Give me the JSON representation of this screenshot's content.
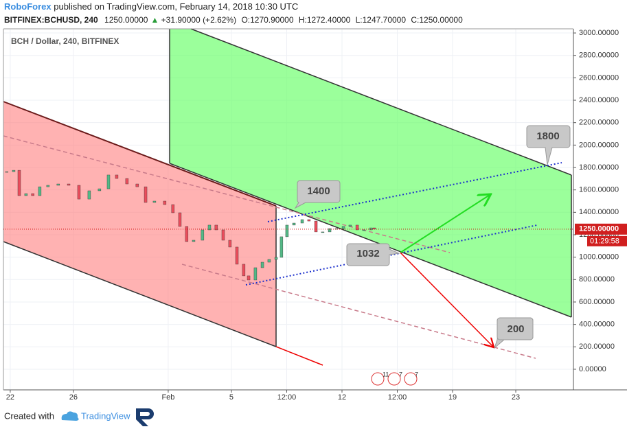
{
  "header": {
    "publisher": "RoboForex",
    "published": "published on TradingView.com, February 14, 2018 10:30 UTC",
    "symbol": "BITFINEX:BCHUSD, 240",
    "last": "1250.00000",
    "change": "+31.90000 (+2.62%)",
    "open": "O:1270.90000",
    "high": "H:1272.40000",
    "low": "L:1247.70000",
    "close": "C:1250.00000"
  },
  "chart_data": {
    "type": "candlestick",
    "legend": "BCH / Dollar, 240, BITFINEX",
    "x": [
      -0.22,
      0.22,
      0.57,
      1,
      1.43,
      1.87,
      2.39,
      3.04,
      3.7,
      4.35,
      5,
      5.65,
      6.22,
      6.74,
      7.39,
      8.04,
      8.57,
      9.13,
      9.78,
      10.3,
      10.74,
      11.17,
      11.61,
      12.17,
      12.61,
      13.04,
      13.48,
      13.91,
      14.35,
      14.78,
      15.09,
      15.52,
      15.96,
      16.39,
      16.83,
      17.17,
      17.52,
      17.96,
      18.48,
      18.91,
      19.35,
      19.78,
      20.22,
      20.65,
      21.09,
      21.52,
      21.96,
      22.39,
      22.83,
      23.04
    ],
    "values": [
      1763,
      1775,
      1549,
      1567,
      1549,
      1628,
      1641,
      1653,
      1641,
      1518,
      1592,
      1610,
      1733,
      1702,
      1653,
      1628,
      1488,
      1500,
      1469,
      1396,
      1274,
      1139,
      1151,
      1243,
      1286,
      1243,
      1151,
      1090,
      937,
      833,
      796,
      906,
      955,
      980,
      998,
      1182,
      1286,
      1304,
      1335,
      1322,
      1225,
      1225,
      1255,
      1255,
      1274,
      1286,
      1243,
      1243,
      1261,
      1250
    ],
    "up_color": "#53b987",
    "down_color": "#eb4d5c",
    "xlim": [
      -0.43,
      35.65
    ],
    "xticks": [
      {
        "value": 0,
        "label": "22"
      },
      {
        "value": 4,
        "label": "26"
      },
      {
        "value": 10,
        "label": "Feb"
      },
      {
        "value": 14,
        "label": "5"
      },
      {
        "value": 17.5,
        "label": "12:00"
      },
      {
        "value": 21,
        "label": "12"
      },
      {
        "value": 24.5,
        "label": "12:00"
      },
      {
        "value": 28,
        "label": "19"
      },
      {
        "value": 32,
        "label": "23"
      }
    ],
    "ylim": [
      -184,
      3037
    ],
    "yticks": [
      {
        "value": 0,
        "label": "0.00000"
      },
      {
        "value": 200,
        "label": "200.00000"
      },
      {
        "value": 400,
        "label": "400.00000"
      },
      {
        "value": 600,
        "label": "600.00000"
      },
      {
        "value": 800,
        "label": "800.00000"
      },
      {
        "value": 1000,
        "label": "1000.00000"
      },
      {
        "value": 1200,
        "label": "1200.00000"
      },
      {
        "value": 1400,
        "label": "1400.00000"
      },
      {
        "value": 1600,
        "label": "1600.00000"
      },
      {
        "value": 1800,
        "label": "1800.00000"
      },
      {
        "value": 2000,
        "label": "2000.00000"
      },
      {
        "value": 2200,
        "label": "2200.00000"
      },
      {
        "value": 2400,
        "label": "2400.00000"
      },
      {
        "value": 2600,
        "label": "2600.00000"
      },
      {
        "value": 2800,
        "label": "2800.00000"
      },
      {
        "value": 3000,
        "label": "3000.00000"
      }
    ],
    "grid": true,
    "last_price": {
      "value": 1250,
      "label": "1250.00000"
    },
    "countdown": "01:29:58",
    "callouts": [
      1800,
      1400,
      1032,
      200
    ],
    "events": [
      "11",
      "7",
      "7"
    ]
  },
  "footer": {
    "created_with": "Created with",
    "brand": "TradingView"
  }
}
